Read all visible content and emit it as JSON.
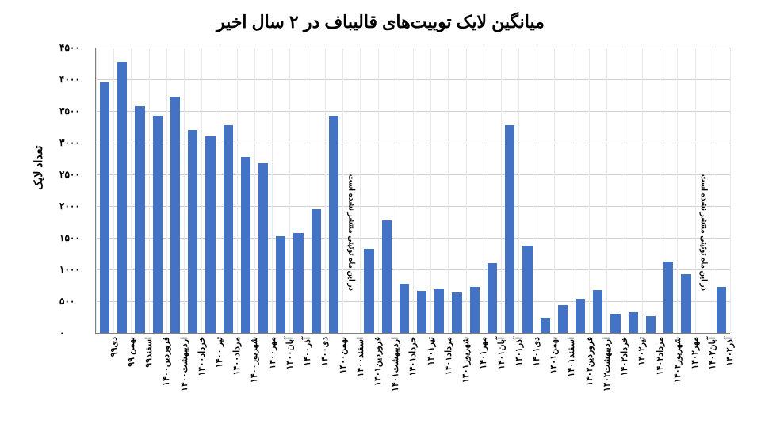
{
  "chart": {
    "type": "bar",
    "title": "میانگین لایک توییت‌های قالیباف در ۲ سال اخیر",
    "ylabel": "تعداد لایک",
    "ylim": [
      0,
      4500
    ],
    "ytick_step": 500,
    "yticks": [
      "۰",
      "۵۰۰",
      "۱۰۰۰",
      "۱۵۰۰",
      "۲۰۰۰",
      "۲۵۰۰",
      "۳۰۰۰",
      "۳۵۰۰",
      "۴۰۰۰",
      "۴۵۰۰"
    ],
    "bar_color": "#4472c4",
    "grid_color": "#d0d0d0",
    "background_color": "#ffffff",
    "bar_width_ratio": 0.55,
    "title_fontsize": 22,
    "label_fontsize": 14,
    "tick_fontsize": 12,
    "annotation_text": "در این ماه توئیتی منتشر نشده است",
    "categories": [
      "دی۹۹",
      "بهمن ۹۹",
      "اسفند۹۹",
      "فروردین۱۴۰۰",
      "اردیبهشت۱۴۰۰",
      "خرداد۱۴۰۰",
      "تیر ۱۴۰۰",
      "مرداد۱۴۰۰",
      "شهریور۱۴۰۰",
      "مهر۱۴۰۰",
      "آبان۱۴۰۰",
      "آذر۱۴۰۰",
      "دی۱۴۰۰",
      "بهمن۱۴۰۰",
      "اسفند۱۴۰۰",
      "فروردین۱۴۰۱",
      "اردیبهشت۱۴۰۱",
      "خرداد۱۴۰۱",
      "تیر۱۴۰۱",
      "مرداد۱۴۰۱",
      "شهریور۱۴۰۱",
      "مهر۱۴۰۱",
      "آبان۱۴۰۱",
      "آذر۱۴۰۱",
      "دی۱۴۰۱",
      "بهمن۱۴۰۱",
      "اسفند۱۴۰۱",
      "فروردین۱۴۰۲",
      "اردیبهشت۱۴۰۲",
      "خرداد۱۴۰۲",
      "تیر۱۴۰۲",
      "مرداد۱۴۰۲",
      "شهریور۱۴۰۲",
      "مهر۱۴۰۲",
      "آبان۱۴۰۲",
      "آذر۱۴۰۲"
    ],
    "values": [
      3950,
      4280,
      3580,
      3430,
      3720,
      3200,
      3100,
      3280,
      2780,
      2680,
      1520,
      1570,
      1950,
      3420,
      null,
      1320,
      1770,
      780,
      660,
      700,
      640,
      730,
      1100,
      3280,
      1370,
      240,
      440,
      540,
      680,
      300,
      320,
      260,
      1120,
      920,
      null,
      720
    ]
  }
}
